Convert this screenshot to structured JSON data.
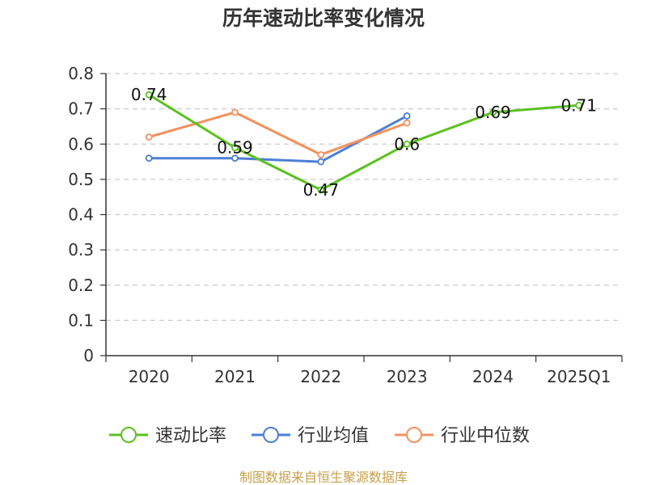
{
  "chart_data": {
    "type": "line",
    "title": "历年速动比率变化情况",
    "categories": [
      "2020",
      "2021",
      "2022",
      "2023",
      "2024",
      "2025Q1"
    ],
    "ylim": [
      0,
      0.8
    ],
    "yticks": [
      0,
      0.1,
      0.2,
      0.3,
      0.4,
      0.5,
      0.6,
      0.7,
      0.8
    ],
    "ytick_labels": [
      "0",
      "0.1",
      "0.2",
      "0.3",
      "0.4",
      "0.5",
      "0.6",
      "0.7",
      "0.8"
    ],
    "grid": true,
    "legend_position": "bottom",
    "series": [
      {
        "name": "速动比率",
        "color": "#5bc11f",
        "values": [
          0.74,
          0.59,
          0.47,
          0.6,
          0.69,
          0.71
        ],
        "labels": [
          "0.74",
          "0.59",
          "0.47",
          "0.6",
          "0.69",
          "0.71"
        ]
      },
      {
        "name": "行业均值",
        "color": "#4c7fd6",
        "values": [
          0.56,
          0.56,
          0.55,
          0.68,
          null,
          null
        ]
      },
      {
        "name": "行业中位数",
        "color": "#f4915f",
        "values": [
          0.62,
          0.69,
          0.57,
          0.66,
          null,
          null
        ]
      }
    ],
    "source": "制图数据来自恒生聚源数据库"
  }
}
